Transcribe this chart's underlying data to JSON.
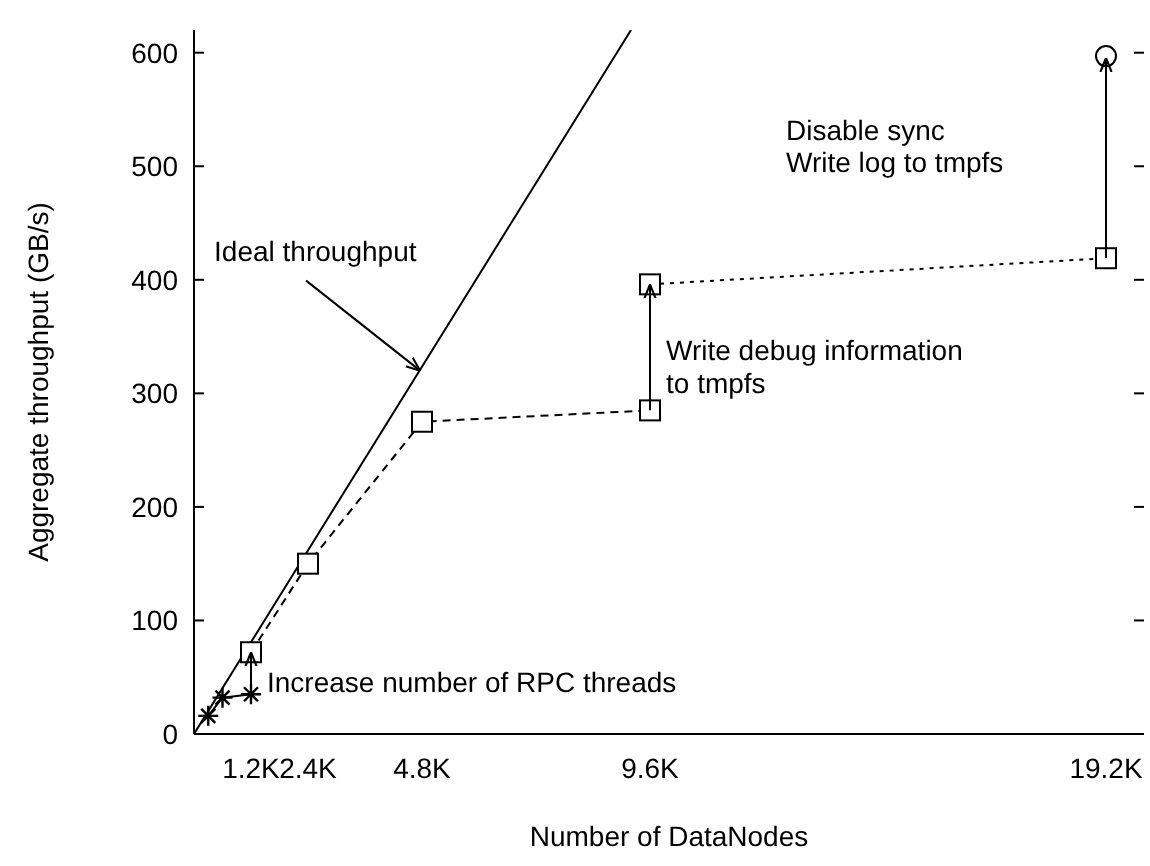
{
  "chart_data": {
    "type": "line",
    "xlabel": "Number of DataNodes",
    "ylabel": "Aggregate throughput (GB/s)",
    "xlim": [
      0,
      20000
    ],
    "ylim": [
      0,
      620
    ],
    "xticks": [
      {
        "value": 1200,
        "label": "1.2K"
      },
      {
        "value": 2400,
        "label": "2.4K"
      },
      {
        "value": 4800,
        "label": "4.8K"
      },
      {
        "value": 9600,
        "label": "9.6K"
      },
      {
        "value": 19200,
        "label": "19.2K"
      }
    ],
    "yticks": [
      0,
      100,
      200,
      300,
      400,
      500,
      600
    ],
    "grid": false,
    "series": [
      {
        "color": "#000000",
        "x": [
          0,
          9200
        ],
        "values": [
          0,
          620
        ],
        "marker": "none",
        "line_style": "solid"
      },
      {
        "color": "#000000",
        "x": [
          300,
          600,
          1200
        ],
        "values": [
          16,
          32,
          35
        ],
        "marker": "cross",
        "line_style": "solid"
      },
      {
        "color": "#000000",
        "x": [
          1200,
          2400,
          4800,
          9600
        ],
        "values": [
          72,
          150,
          275,
          285
        ],
        "marker": "square",
        "line_style": "dashed"
      },
      {
        "color": "#000000",
        "x": [
          9600,
          19200
        ],
        "values": [
          396,
          419
        ],
        "marker": "square",
        "line_style": "dotted"
      },
      {
        "type": "scatter",
        "color": "#000000",
        "x": [
          19200
        ],
        "values": [
          597
        ],
        "marker": "circle"
      }
    ],
    "annotations": [
      {
        "text": "Ideal throughput",
        "x": 4760,
        "y": 320
      },
      {
        "text": "Increase number of RPC threads",
        "x": 1200,
        "y": 72
      },
      {
        "text": "Write debug information\nto tmpfs",
        "x": 9600,
        "y": 396
      },
      "Disable sync\nWrite log to tmpfs"
    ]
  }
}
